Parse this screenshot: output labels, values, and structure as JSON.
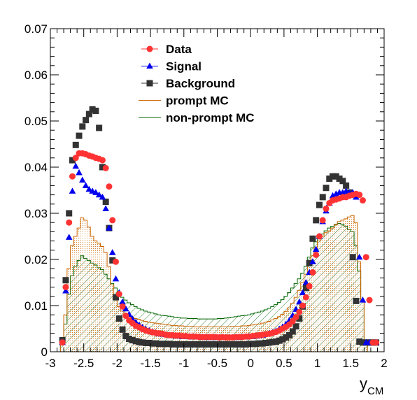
{
  "chart_data": {
    "type": "scatter",
    "title": "",
    "xlabel": "y",
    "xlabel_subscript": "CM",
    "ylabel": "",
    "xlim": [
      -3,
      2
    ],
    "ylim": [
      0,
      0.07
    ],
    "x_ticks": [
      "-3",
      "-2.5",
      "-2",
      "-1.5",
      "-1",
      "-0.5",
      "0",
      "0.5",
      "1",
      "1.5",
      "2"
    ],
    "y_ticks": [
      "0",
      "0.01",
      "0.02",
      "0.03",
      "0.04",
      "0.05",
      "0.06",
      "0.07"
    ],
    "grid": false,
    "legend_position": "top-center",
    "series": [
      {
        "name": "Data",
        "kind": "points",
        "marker": "circle",
        "color": "#ff3333",
        "x": [
          -2.82,
          -2.77,
          -2.72,
          -2.67,
          -2.62,
          -2.57,
          -2.52,
          -2.47,
          -2.42,
          -2.37,
          -2.32,
          -2.27,
          -2.22,
          -2.17,
          -2.12,
          -2.07,
          -2.02,
          -1.97,
          -1.92,
          -1.87,
          -1.82,
          -1.77,
          -1.72,
          -1.67,
          -1.62,
          -1.57,
          -1.52,
          -1.47,
          -1.42,
          -1.37,
          -1.32,
          -1.27,
          -1.22,
          -1.17,
          -1.12,
          -1.07,
          -1.02,
          -0.97,
          -0.92,
          -0.87,
          -0.82,
          -0.77,
          -0.72,
          -0.67,
          -0.62,
          -0.57,
          -0.52,
          -0.47,
          -0.42,
          -0.37,
          -0.32,
          -0.27,
          -0.22,
          -0.17,
          -0.12,
          -0.07,
          -0.02,
          0.03,
          0.08,
          0.13,
          0.18,
          0.23,
          0.28,
          0.33,
          0.38,
          0.43,
          0.48,
          0.53,
          0.58,
          0.63,
          0.68,
          0.73,
          0.78,
          0.83,
          0.88,
          0.93,
          0.98,
          1.03,
          1.08,
          1.13,
          1.18,
          1.23,
          1.28,
          1.33,
          1.38,
          1.43,
          1.48,
          1.53,
          1.58,
          1.63,
          1.68,
          1.73,
          1.78,
          1.83,
          1.88
        ],
        "y": [
          0.002,
          0.014,
          0.028,
          0.038,
          0.042,
          0.043,
          0.043,
          0.0428,
          0.0425,
          0.0423,
          0.042,
          0.0418,
          0.0415,
          0.0398,
          0.0358,
          0.0285,
          0.0195,
          0.0125,
          0.0098,
          0.0078,
          0.0068,
          0.0062,
          0.0056,
          0.0053,
          0.0049,
          0.0046,
          0.0044,
          0.0042,
          0.0041,
          0.004,
          0.0039,
          0.0037,
          0.0036,
          0.0036,
          0.0035,
          0.0035,
          0.0034,
          0.0034,
          0.0033,
          0.0033,
          0.0033,
          0.0032,
          0.0032,
          0.0032,
          0.0032,
          0.0032,
          0.0032,
          0.0031,
          0.0032,
          0.0031,
          0.0031,
          0.0031,
          0.0032,
          0.0032,
          0.0032,
          0.0033,
          0.0033,
          0.0034,
          0.0035,
          0.0036,
          0.0037,
          0.0038,
          0.0039,
          0.0041,
          0.0043,
          0.0046,
          0.005,
          0.0054,
          0.0059,
          0.0066,
          0.0075,
          0.0086,
          0.01,
          0.0118,
          0.0142,
          0.0172,
          0.021,
          0.025,
          0.0285,
          0.031,
          0.0322,
          0.0328,
          0.033,
          0.0332,
          0.0335,
          0.0335,
          0.0338,
          0.034,
          0.0342,
          0.034,
          0.0328,
          0.0205,
          0.0112,
          0.002,
          0.002
        ]
      },
      {
        "name": "Signal",
        "kind": "points",
        "marker": "triangle",
        "color": "#0000ee",
        "x": [
          -2.82,
          -2.77,
          -2.72,
          -2.67,
          -2.62,
          -2.57,
          -2.52,
          -2.47,
          -2.42,
          -2.37,
          -2.32,
          -2.27,
          -2.22,
          -2.17,
          -2.12,
          -2.07,
          -2.02,
          -1.97,
          -1.92,
          -1.87,
          -1.82,
          -1.77,
          -1.72,
          -1.67,
          -1.62,
          -1.57,
          -1.52,
          -1.47,
          -1.42,
          -1.37,
          -1.32,
          -1.27,
          -1.22,
          -1.17,
          -1.12,
          -1.07,
          -1.02,
          -0.97,
          -0.92,
          -0.87,
          -0.82,
          -0.77,
          -0.72,
          -0.67,
          -0.62,
          -0.57,
          -0.52,
          -0.47,
          -0.42,
          -0.37,
          -0.32,
          -0.27,
          -0.22,
          -0.17,
          -0.12,
          -0.07,
          -0.02,
          0.03,
          0.08,
          0.13,
          0.18,
          0.23,
          0.28,
          0.33,
          0.38,
          0.43,
          0.48,
          0.53,
          0.58,
          0.63,
          0.68,
          0.73,
          0.78,
          0.83,
          0.88,
          0.93,
          0.98,
          1.03,
          1.08,
          1.13,
          1.18,
          1.23,
          1.28,
          1.33,
          1.38,
          1.43,
          1.48,
          1.53,
          1.58,
          1.63,
          1.68,
          1.73,
          1.78,
          1.83,
          1.88
        ],
        "y": [
          0.002,
          0.0132,
          0.0248,
          0.0348,
          0.0402,
          0.0388,
          0.0372,
          0.036,
          0.0352,
          0.0348,
          0.0345,
          0.034,
          0.0335,
          0.031,
          0.0268,
          0.0215,
          0.0158,
          0.0128,
          0.0108,
          0.0093,
          0.0081,
          0.0071,
          0.0064,
          0.0058,
          0.0053,
          0.0049,
          0.0046,
          0.0043,
          0.0041,
          0.0039,
          0.0038,
          0.0037,
          0.0036,
          0.0035,
          0.0034,
          0.0034,
          0.0033,
          0.0033,
          0.0033,
          0.0032,
          0.0032,
          0.0032,
          0.0031,
          0.0031,
          0.0031,
          0.0031,
          0.0031,
          0.0031,
          0.0031,
          0.0031,
          0.0031,
          0.0031,
          0.0031,
          0.0031,
          0.0032,
          0.0032,
          0.0033,
          0.0033,
          0.0034,
          0.0035,
          0.0036,
          0.0038,
          0.004,
          0.0042,
          0.0045,
          0.0049,
          0.0054,
          0.006,
          0.0068,
          0.0079,
          0.0092,
          0.0108,
          0.0128,
          0.015,
          0.0172,
          0.0195,
          0.0222,
          0.025,
          0.0282,
          0.0305,
          0.0322,
          0.0338,
          0.0342,
          0.0345,
          0.0345,
          0.0348,
          0.0345,
          0.0345,
          0.0335,
          0.0205,
          0.0112,
          0.002,
          0.002,
          0.002,
          0.002
        ]
      },
      {
        "name": "Background",
        "kind": "points",
        "marker": "square",
        "color": "#333333",
        "x": [
          -2.82,
          -2.77,
          -2.72,
          -2.67,
          -2.62,
          -2.57,
          -2.52,
          -2.47,
          -2.42,
          -2.37,
          -2.32,
          -2.27,
          -2.22,
          -2.17,
          -2.12,
          -2.07,
          -2.02,
          -1.97,
          -1.92,
          -1.87,
          -1.82,
          -1.77,
          -1.72,
          -1.67,
          -1.62,
          -1.57,
          -1.52,
          -1.47,
          -1.42,
          -1.37,
          -1.32,
          -1.27,
          -1.22,
          -1.17,
          -1.12,
          -1.07,
          -1.02,
          -0.97,
          -0.92,
          -0.87,
          -0.82,
          -0.77,
          -0.72,
          -0.67,
          -0.62,
          -0.57,
          -0.52,
          -0.47,
          -0.42,
          -0.37,
          -0.32,
          -0.27,
          -0.22,
          -0.17,
          -0.12,
          -0.07,
          -0.02,
          0.03,
          0.08,
          0.13,
          0.18,
          0.23,
          0.28,
          0.33,
          0.38,
          0.43,
          0.48,
          0.53,
          0.58,
          0.63,
          0.68,
          0.73,
          0.78,
          0.83,
          0.88,
          0.93,
          0.98,
          1.03,
          1.08,
          1.13,
          1.18,
          1.23,
          1.28,
          1.33,
          1.38,
          1.43,
          1.48,
          1.53,
          1.58,
          1.63,
          1.68,
          1.73,
          1.78,
          1.83,
          1.88
        ],
        "y": [
          0.0025,
          0.0155,
          0.03,
          0.0415,
          0.0448,
          0.0468,
          0.0488,
          0.0502,
          0.0515,
          0.0525,
          0.0522,
          0.0485,
          0.04,
          0.0325,
          0.0268,
          0.0198,
          0.0118,
          0.0072,
          0.0048,
          0.0034,
          0.0028,
          0.0025,
          0.0023,
          0.0021,
          0.002,
          0.0019,
          0.0019,
          0.0018,
          0.0018,
          0.0017,
          0.0017,
          0.0017,
          0.0017,
          0.0016,
          0.0016,
          0.0016,
          0.0016,
          0.0016,
          0.0016,
          0.0016,
          0.0016,
          0.0016,
          0.0016,
          0.0016,
          0.0016,
          0.0016,
          0.0016,
          0.0016,
          0.0016,
          0.0016,
          0.0016,
          0.0016,
          0.0016,
          0.0016,
          0.0016,
          0.0016,
          0.0017,
          0.0017,
          0.0017,
          0.0018,
          0.0018,
          0.0019,
          0.002,
          0.0021,
          0.0022,
          0.0024,
          0.0027,
          0.0031,
          0.0036,
          0.0044,
          0.0055,
          0.0072,
          0.0098,
          0.0138,
          0.0192,
          0.0245,
          0.0285,
          0.0318,
          0.0335,
          0.0355,
          0.0375,
          0.038,
          0.038,
          0.0375,
          0.037,
          0.036,
          0.0345,
          0.0205,
          0.011,
          0.0022,
          0.002,
          0.002,
          0.002,
          0.002,
          0.002
        ]
      },
      {
        "name": "prompt MC",
        "kind": "histogram",
        "fill": "dotted",
        "color": "#cc6600",
        "x_start": -2.85,
        "bin_width": 0.05,
        "y": [
          0.003,
          0.008,
          0.018,
          0.023,
          0.025,
          0.0268,
          0.029,
          0.0285,
          0.027,
          0.025,
          0.024,
          0.0235,
          0.0228,
          0.0215,
          0.0185,
          0.0145,
          0.0115,
          0.0098,
          0.0088,
          0.0082,
          0.0078,
          0.0075,
          0.0072,
          0.007,
          0.0068,
          0.0066,
          0.0064,
          0.0063,
          0.0062,
          0.0061,
          0.006,
          0.0059,
          0.0058,
          0.0057,
          0.0057,
          0.0056,
          0.0056,
          0.0055,
          0.0055,
          0.0055,
          0.0054,
          0.0054,
          0.0054,
          0.0054,
          0.0054,
          0.0054,
          0.0054,
          0.0054,
          0.0054,
          0.0054,
          0.0054,
          0.0055,
          0.0055,
          0.0055,
          0.0056,
          0.0056,
          0.0057,
          0.0058,
          0.0059,
          0.006,
          0.0062,
          0.0064,
          0.0066,
          0.0069,
          0.0072,
          0.0076,
          0.0081,
          0.0087,
          0.0095,
          0.0105,
          0.0118,
          0.0133,
          0.015,
          0.0168,
          0.0188,
          0.0208,
          0.0226,
          0.024,
          0.025,
          0.0258,
          0.0262,
          0.0268,
          0.0275,
          0.0282,
          0.0285,
          0.0288,
          0.0292,
          0.0295,
          0.028,
          0.0195,
          0.011,
          0.0025
        ]
      },
      {
        "name": "non-prompt MC",
        "kind": "histogram",
        "fill": "hatched",
        "color": "#006600",
        "x_start": -2.85,
        "bin_width": 0.05,
        "y": [
          0.002,
          0.006,
          0.0125,
          0.0165,
          0.0185,
          0.0198,
          0.0208,
          0.0202,
          0.0198,
          0.0192,
          0.0188,
          0.0182,
          0.0178,
          0.0168,
          0.0158,
          0.0148,
          0.0138,
          0.0128,
          0.0118,
          0.0112,
          0.0106,
          0.0102,
          0.0098,
          0.0094,
          0.0091,
          0.0088,
          0.0086,
          0.0084,
          0.0082,
          0.008,
          0.0079,
          0.0078,
          0.0077,
          0.0076,
          0.0075,
          0.0074,
          0.0073,
          0.0073,
          0.0072,
          0.0072,
          0.0072,
          0.0071,
          0.0071,
          0.0071,
          0.0071,
          0.0071,
          0.0071,
          0.0072,
          0.0072,
          0.0073,
          0.0074,
          0.0075,
          0.0076,
          0.0077,
          0.0078,
          0.0079,
          0.008,
          0.0082,
          0.0084,
          0.0086,
          0.0088,
          0.0091,
          0.0094,
          0.0098,
          0.0102,
          0.0107,
          0.0113,
          0.012,
          0.0128,
          0.0138,
          0.0148,
          0.0158,
          0.017,
          0.0185,
          0.0205,
          0.0225,
          0.0238,
          0.0248,
          0.0255,
          0.0262,
          0.0268,
          0.0272,
          0.0276,
          0.0278,
          0.0276,
          0.0272,
          0.0265,
          0.026,
          0.023,
          0.0175,
          0.011,
          0.0025
        ]
      }
    ]
  }
}
